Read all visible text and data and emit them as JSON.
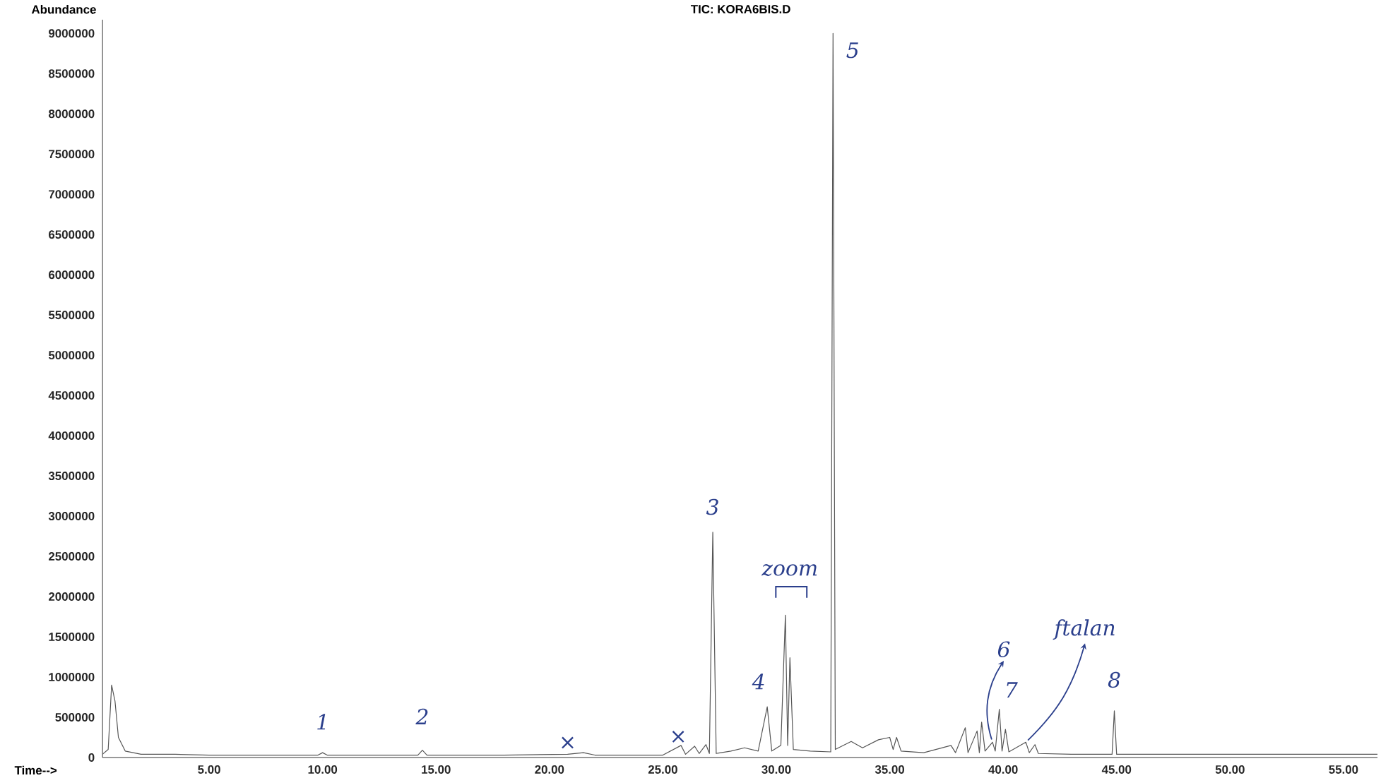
{
  "chart_data": {
    "type": "line",
    "title": "TIC: KORA6BIS.D",
    "xlabel": "Time-->",
    "ylabel": "Abundance",
    "xlim": [
      0.3,
      56.5
    ],
    "ylim": [
      0,
      9170000
    ],
    "xticks": [
      {
        "value": 5,
        "label": "5.00"
      },
      {
        "value": 10,
        "label": "10.00"
      },
      {
        "value": 15,
        "label": "15.00"
      },
      {
        "value": 20,
        "label": "20.00"
      },
      {
        "value": 25,
        "label": "25.00"
      },
      {
        "value": 30,
        "label": "30.00"
      },
      {
        "value": 35,
        "label": "35.00"
      },
      {
        "value": 40,
        "label": "40.00"
      },
      {
        "value": 45,
        "label": "45.00"
      },
      {
        "value": 50,
        "label": "50.00"
      },
      {
        "value": 55,
        "label": "55.00"
      }
    ],
    "yticks": [
      0,
      500000,
      1000000,
      1500000,
      2000000,
      2500000,
      3000000,
      3500000,
      4000000,
      4500000,
      5000000,
      5500000,
      6000000,
      6500000,
      7000000,
      7500000,
      8000000,
      8500000,
      9000000
    ],
    "grid": false,
    "marker": "none",
    "line_style": "solid",
    "series": [
      {
        "color": "#555555",
        "x": [
          0.3,
          0.55,
          0.7,
          0.85,
          1.0,
          1.3,
          2.0,
          3.5,
          5,
          9.8,
          10.0,
          10.2,
          14.2,
          14.4,
          14.6,
          18,
          20.8,
          21.5,
          22,
          25.0,
          25.8,
          26.0,
          26.4,
          26.6,
          26.9,
          27.05,
          27.2,
          27.35,
          28.0,
          28.6,
          29.2,
          29.6,
          29.8,
          30.2,
          30.4,
          30.5,
          30.6,
          30.75,
          31.5,
          32.4,
          32.5,
          32.6,
          33.3,
          33.8,
          34.5,
          35.0,
          35.15,
          35.3,
          35.5,
          36.5,
          37.7,
          37.9,
          38.33,
          38.45,
          38.85,
          38.95,
          39.05,
          39.2,
          39.53,
          39.65,
          39.83,
          39.95,
          40.1,
          40.25,
          41.0,
          41.15,
          41.4,
          41.55,
          43,
          44.8,
          44.9,
          45.0,
          50,
          56.5
        ],
        "values": [
          40000,
          100000,
          900000,
          700000,
          250000,
          80000,
          40000,
          40000,
          30000,
          30000,
          60000,
          30000,
          30000,
          90000,
          30000,
          30000,
          40000,
          60000,
          30000,
          30000,
          150000,
          40000,
          140000,
          50000,
          160000,
          50000,
          2800000,
          50000,
          80000,
          120000,
          80000,
          630000,
          80000,
          150000,
          1770000,
          150000,
          1240000,
          100000,
          80000,
          70000,
          9000000,
          100000,
          200000,
          120000,
          220000,
          250000,
          100000,
          250000,
          80000,
          60000,
          150000,
          60000,
          370000,
          60000,
          330000,
          60000,
          440000,
          80000,
          190000,
          80000,
          600000,
          80000,
          350000,
          70000,
          190000,
          60000,
          160000,
          50000,
          40000,
          40000,
          580000,
          40000,
          40000,
          40000
        ]
      }
    ],
    "annotations": [
      {
        "text": "1",
        "x": 10.0,
        "y": 60000
      },
      {
        "text": "2",
        "x": 14.4,
        "y": 90000
      },
      {
        "text": "×",
        "x": 20.8,
        "y": 40000
      },
      {
        "text": "×",
        "x": 25.8,
        "y": 150000
      },
      {
        "text": "3",
        "x": 27.2,
        "y": 2800000
      },
      {
        "text": "4",
        "x": 29.6,
        "y": 630000
      },
      "zoom",
      {
        "text": "5",
        "x": 32.5,
        "y": 9000000
      },
      {
        "text": "6",
        "x": 39.53,
        "y": 190000
      },
      {
        "text": "7",
        "x": 40.1,
        "y": 350000
      },
      {
        "text": "8",
        "x": 44.9,
        "y": 580000
      },
      {
        "text": "ftalan",
        "x": 41.0,
        "y": 190000
      }
    ]
  }
}
